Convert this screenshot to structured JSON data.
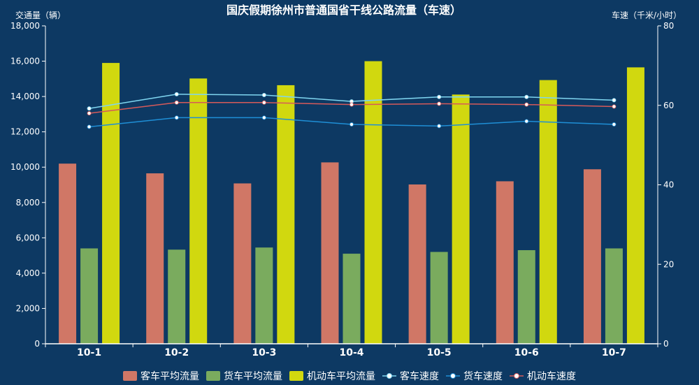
{
  "chart_data": {
    "type": "bar",
    "title": "国庆假期徐州市普通国省干线公路流量（车速）",
    "ylabel_left": "交通量（辆）",
    "ylabel_right": "车速（千米/小时）",
    "categories": [
      "10-1",
      "10-2",
      "10-3",
      "10-4",
      "10-5",
      "10-6",
      "10-7"
    ],
    "ylim_left": [
      0,
      18000
    ],
    "ylim_right": [
      0,
      80
    ],
    "yticks_left": [
      0,
      2000,
      4000,
      6000,
      8000,
      10000,
      12000,
      14000,
      16000,
      18000
    ],
    "yticks_left_labels": [
      "0",
      "2,000",
      "4,000",
      "6,000",
      "8,000",
      "10,000",
      "12,000",
      "14,000",
      "16,000",
      "18,000"
    ],
    "yticks_right": [
      0,
      20,
      40,
      60,
      80
    ],
    "bar_series": [
      {
        "name": "客车平均流量",
        "color": "#d07766",
        "values": [
          10200,
          9650,
          9080,
          10270,
          9020,
          9200,
          9880
        ]
      },
      {
        "name": "货车平均流量",
        "color": "#7aab5e",
        "values": [
          5400,
          5330,
          5450,
          5100,
          5200,
          5300,
          5400
        ]
      },
      {
        "name": "机动车平均流量",
        "color": "#d1d80f",
        "values": [
          15900,
          15020,
          14640,
          16000,
          14110,
          14930,
          15650
        ]
      }
    ],
    "line_series": [
      {
        "name": "客车速度",
        "color": "#7fd6f0",
        "values": [
          59.2,
          62.8,
          62.6,
          61.0,
          62.1,
          62.1,
          61.3
        ]
      },
      {
        "name": "货车速度",
        "color": "#1f8fd6",
        "values": [
          54.6,
          56.9,
          56.9,
          55.2,
          54.8,
          56.0,
          55.2
        ]
      },
      {
        "name": "机动车速度",
        "color": "#d65a5a",
        "values": [
          58.0,
          60.7,
          60.7,
          60.2,
          60.4,
          60.2,
          59.7
        ]
      }
    ],
    "grid": false,
    "legend_position": "bottom"
  }
}
